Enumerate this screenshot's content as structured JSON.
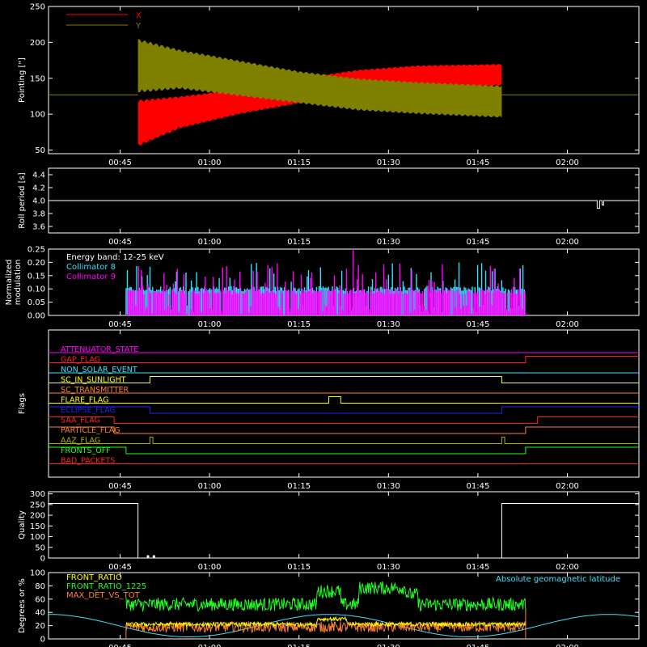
{
  "colors": {
    "background": "#000000",
    "frame": "#ffffff",
    "x": "#ff0000",
    "y": "#808000",
    "white": "#ffffff",
    "cyan": "#33e0ff",
    "magenta": "#ff00ff",
    "red": "#ff2020",
    "blue": "#2020ff",
    "yellow": "#ffff00",
    "orange": "#ff8030",
    "green": "#20ff20",
    "olive": "#b0b000",
    "lightcyan": "#40e0ff"
  },
  "time_ticks": [
    "00:45",
    "01:00",
    "01:15",
    "01:30",
    "01:45",
    "02:00"
  ],
  "chart_data": [
    {
      "type": "line",
      "ylabel": "Pointing [\"]",
      "ylim": [
        45,
        250
      ],
      "yticks": [
        50,
        100,
        150,
        200,
        250
      ],
      "x_range": [
        "00:33",
        "02:12"
      ],
      "series": [
        {
          "name": "X",
          "color": "#ff0000",
          "baseline": 127,
          "envelope": [
            {
              "t": "00:48",
              "low": 55,
              "high": 120
            },
            {
              "t": "00:55",
              "low": 80,
              "high": 125
            },
            {
              "t": "01:05",
              "low": 100,
              "high": 135
            },
            {
              "t": "01:15",
              "low": 115,
              "high": 150
            },
            {
              "t": "01:25",
              "low": 128,
              "high": 162
            },
            {
              "t": "01:35",
              "low": 135,
              "high": 168
            },
            {
              "t": "01:49",
              "low": 140,
              "high": 170
            }
          ]
        },
        {
          "name": "Y",
          "color": "#808000",
          "baseline": 127,
          "envelope": [
            {
              "t": "00:48",
              "low": 130,
              "high": 205
            },
            {
              "t": "00:55",
              "low": 135,
              "high": 190
            },
            {
              "t": "01:05",
              "low": 125,
              "high": 175
            },
            {
              "t": "01:15",
              "low": 115,
              "high": 160
            },
            {
              "t": "01:25",
              "low": 105,
              "high": 150
            },
            {
              "t": "01:35",
              "low": 100,
              "high": 145
            },
            {
              "t": "01:49",
              "low": 95,
              "high": 140
            }
          ]
        }
      ]
    },
    {
      "type": "line",
      "ylabel": "Roll period [s]",
      "ylim": [
        3.5,
        4.5
      ],
      "yticks": [
        3.6,
        3.8,
        4.0,
        4.2,
        4.4
      ],
      "series": [
        {
          "color": "#ffffff",
          "value": 4.0,
          "dips": [
            {
              "t": "02:05",
              "value": 3.88
            }
          ]
        }
      ]
    },
    {
      "type": "bar",
      "ylabel": "Normalized modulation",
      "annotation": "Energy band: 12-25 keV",
      "ylim": [
        0,
        0.25
      ],
      "yticks": [
        0.0,
        0.05,
        0.1,
        0.15,
        0.2,
        0.25
      ],
      "data_range": [
        "00:46",
        "01:53"
      ],
      "series": [
        {
          "name": "Collimator 8",
          "color": "#33e0ff",
          "typical": 0.1
        },
        {
          "name": "Collimator 9",
          "color": "#ff00ff",
          "typical": 0.09
        }
      ]
    },
    {
      "type": "step",
      "ylabel": "Flags",
      "flags": [
        {
          "name": "ATTENUATOR_STATE",
          "color": "#ff00ff",
          "steps": []
        },
        {
          "name": "GAP_FLAG",
          "color": "#ff2020",
          "steps": [
            {
              "from": "01:53",
              "to": "02:12"
            }
          ]
        },
        {
          "name": "NON_SOLAR_EVENT",
          "color": "#40e0ff",
          "steps": []
        },
        {
          "name": "SC_IN_SUNLIGHT",
          "color": "#ffff00",
          "steps": [
            {
              "from": "00:50",
              "to": "01:49"
            }
          ]
        },
        {
          "name": "SC_TRANSMITTER",
          "color": "#ff8030",
          "steps": []
        },
        {
          "name": "FLARE_FLAG",
          "color": "#ffff00",
          "steps": [
            {
              "from": "01:20",
              "to": "01:22"
            }
          ]
        },
        {
          "name": "ECLIPSE_FLAG",
          "color": "#2020ff",
          "steps": [
            {
              "from": "00:33",
              "to": "00:50"
            },
            {
              "from": "01:49",
              "to": "02:12"
            }
          ]
        },
        {
          "name": "SAA_FLAG",
          "color": "#ff2020",
          "steps": [
            {
              "from": "00:33",
              "to": "00:44"
            },
            {
              "from": "01:55",
              "to": "02:12"
            }
          ]
        },
        {
          "name": "PARTICLE_FLAG",
          "color": "#ff8030",
          "steps": [
            {
              "from": "00:33",
              "to": "00:44"
            },
            {
              "from": "01:53",
              "to": "02:12"
            }
          ]
        },
        {
          "name": "AAZ_FLAG",
          "color": "#b0b000",
          "steps": [
            {
              "from": "00:50",
              "to": "00:50.5"
            },
            {
              "from": "01:49",
              "to": "01:49.5"
            }
          ]
        },
        {
          "name": "FRONTS_OFF",
          "color": "#20ff20",
          "steps": [
            {
              "from": "00:33",
              "to": "00:46"
            },
            {
              "from": "01:53",
              "to": "02:12"
            }
          ]
        },
        {
          "name": "BAD_PACKETS",
          "color": "#ff2020",
          "steps": []
        }
      ]
    },
    {
      "type": "line",
      "ylabel": "Quality",
      "ylim": [
        0,
        310
      ],
      "yticks": [
        0,
        50,
        100,
        150,
        200,
        250,
        300
      ],
      "series": [
        {
          "color": "#ffffff",
          "segments": [
            {
              "from": "00:33",
              "to": "00:48",
              "value": 255
            },
            {
              "from": "00:48",
              "to": "01:49",
              "value": 0
            },
            {
              "from": "01:49",
              "to": "02:12",
              "value": 255
            }
          ],
          "dots": [
            {
              "t": "00:49",
              "value": 0
            },
            {
              "t": "00:50",
              "value": 0
            }
          ]
        }
      ]
    },
    {
      "type": "line",
      "ylabel": "Degrees or %",
      "ylim": [
        0,
        100
      ],
      "yticks": [
        0,
        20,
        40,
        60,
        80,
        100
      ],
      "legend_right": "Absolute geomagnetic latitude",
      "series": [
        {
          "name": "FRONT_RATIO",
          "color": "#ffff00",
          "typical": 22
        },
        {
          "name": "FRONT_RATIO_1225",
          "color": "#20ff20",
          "typical": 55
        },
        {
          "name": "MAX_DET_VS_TOT",
          "color": "#ff8030",
          "typical": 20
        },
        {
          "name": "Absolute geomagnetic latitude",
          "color": "#40e0ff",
          "typical": 20
        }
      ]
    }
  ]
}
